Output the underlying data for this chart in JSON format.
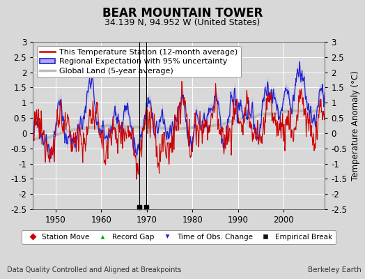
{
  "title": "BEAR MOUNTAIN TOWER",
  "subtitle": "34.139 N, 94.952 W (United States)",
  "ylabel": "Temperature Anomaly (°C)",
  "xlabel_note": "Data Quality Controlled and Aligned at Breakpoints",
  "credit": "Berkeley Earth",
  "year_start": 1945,
  "year_end": 2009,
  "ylim": [
    -2.5,
    3.0
  ],
  "yticks": [
    -2.5,
    -2,
    -1.5,
    -1,
    -0.5,
    0,
    0.5,
    1,
    1.5,
    2,
    2.5,
    3
  ],
  "xticks": [
    1950,
    1960,
    1970,
    1980,
    1990,
    2000
  ],
  "bg_color": "#d8d8d8",
  "plot_bg_color": "#d8d8d8",
  "grid_color": "#ffffff",
  "empirical_breaks": [
    1968.3,
    1969.8
  ],
  "line_color_station": "#cc0000",
  "line_color_regional": "#2222cc",
  "fill_color_regional": "#aaaaee",
  "line_color_global": "#bbbbbb",
  "title_fontsize": 12,
  "subtitle_fontsize": 9,
  "legend_fontsize": 8,
  "axis_fontsize": 8.5
}
